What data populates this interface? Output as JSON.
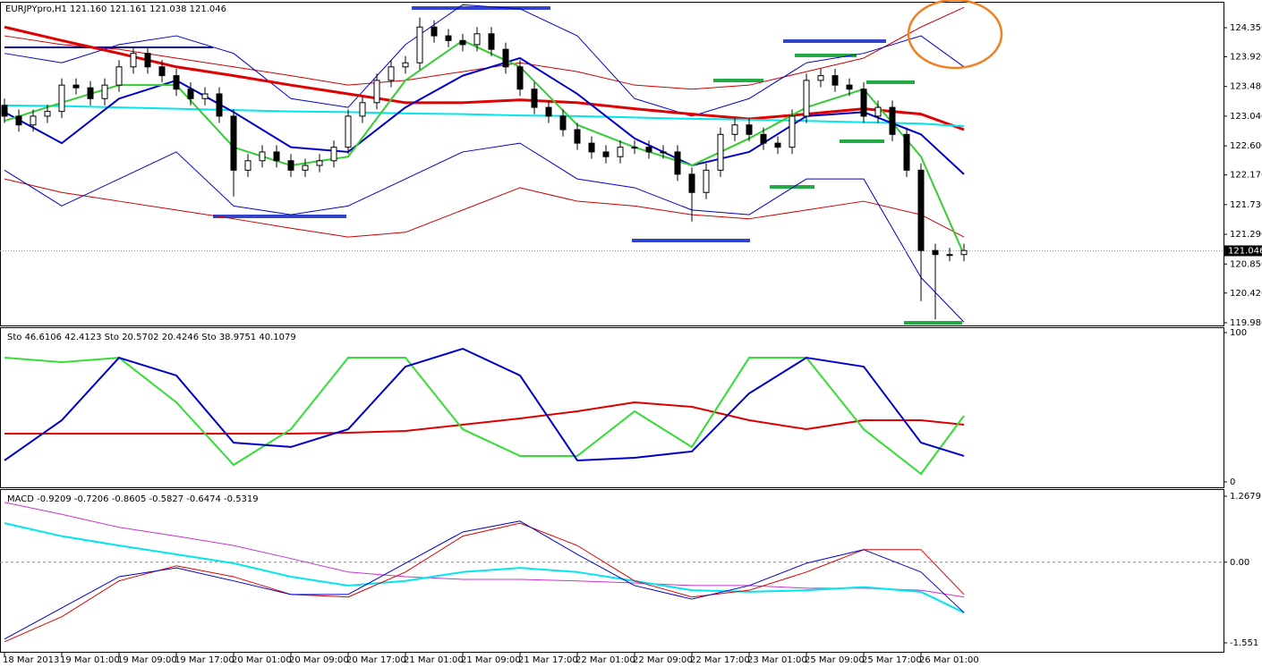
{
  "chart_data": [
    {
      "type": "candlestick",
      "title": "EURJPYpro,H1  121.160 121.161 121.038 121.046",
      "xlim": [
        -0.625,
        170.25
      ],
      "ylim": [
        119.94,
        124.734
      ],
      "yticks": [
        {
          "value": 124.35,
          "label": "124.350"
        },
        {
          "value": 123.92,
          "label": "123.920"
        },
        {
          "value": 123.48,
          "label": "123.480"
        },
        {
          "value": 123.04,
          "label": "123.040"
        },
        {
          "value": 122.6,
          "label": "122.600"
        },
        {
          "value": 122.17,
          "label": "122.170"
        },
        {
          "value": 121.73,
          "label": "121.730"
        },
        {
          "value": 121.29,
          "label": "121.290"
        },
        {
          "value": 120.85,
          "label": "120.850"
        },
        {
          "value": 120.42,
          "label": "120.420"
        },
        {
          "value": 119.98,
          "label": "119.980"
        }
      ],
      "last_price": {
        "value": 121.046,
        "label": "121.046"
      },
      "bull_color": "#ffffff",
      "bear_color": "#000000",
      "x": [
        0,
        2,
        4,
        6,
        8,
        10,
        12,
        14,
        16,
        18,
        20,
        22,
        24,
        26,
        28,
        30,
        32,
        34,
        36,
        38,
        40,
        42,
        44,
        46,
        48,
        50,
        52,
        54,
        56,
        58,
        60,
        62,
        64,
        66,
        68,
        70,
        72,
        74,
        76,
        78,
        80,
        82,
        84,
        86,
        88,
        90,
        92,
        94,
        96,
        98,
        100,
        102,
        104,
        106,
        108,
        110,
        112,
        114,
        116,
        118,
        120,
        122,
        124,
        126,
        128,
        130,
        132,
        134
      ],
      "open": [
        123.2,
        123.04,
        122.91,
        123.04,
        123.11,
        123.5,
        123.46,
        123.3,
        123.5,
        123.77,
        123.97,
        123.77,
        123.64,
        123.44,
        123.3,
        123.37,
        123.04,
        122.24,
        122.38,
        122.51,
        122.38,
        122.24,
        122.31,
        122.38,
        122.58,
        123.04,
        123.24,
        123.57,
        123.77,
        123.83,
        124.36,
        124.23,
        124.16,
        124.1,
        124.26,
        124.03,
        123.77,
        123.44,
        123.17,
        123.04,
        122.84,
        122.64,
        122.51,
        122.44,
        122.58,
        122.58,
        122.51,
        122.51,
        122.18,
        121.91,
        122.24,
        122.77,
        122.91,
        122.77,
        122.64,
        122.58,
        123.04,
        123.57,
        123.64,
        123.5,
        123.44,
        123.04,
        123.17,
        122.77,
        122.24,
        121.05,
        120.99,
        120.99
      ],
      "high": [
        123.3,
        123.14,
        123.14,
        123.21,
        123.6,
        123.6,
        123.56,
        123.6,
        123.87,
        124.07,
        124.07,
        123.87,
        123.74,
        123.54,
        123.47,
        123.47,
        123.14,
        122.48,
        122.61,
        122.61,
        122.48,
        122.41,
        122.48,
        122.68,
        123.14,
        123.34,
        123.67,
        123.87,
        123.93,
        124.5,
        124.46,
        124.33,
        124.26,
        124.36,
        124.36,
        124.13,
        123.87,
        123.54,
        123.27,
        123.14,
        122.94,
        122.74,
        122.61,
        122.68,
        122.68,
        122.68,
        122.61,
        122.61,
        122.28,
        122.34,
        122.87,
        123.01,
        123.01,
        122.87,
        122.74,
        123.14,
        123.67,
        123.74,
        123.74,
        123.6,
        123.54,
        123.27,
        123.27,
        122.87,
        122.34,
        121.15,
        121.09,
        121.15
      ],
      "low": [
        122.94,
        122.81,
        122.81,
        122.94,
        123.01,
        123.36,
        123.2,
        123.2,
        123.4,
        123.67,
        123.67,
        123.54,
        123.34,
        123.2,
        123.2,
        122.94,
        121.85,
        122.14,
        122.28,
        122.28,
        122.14,
        122.14,
        122.21,
        122.28,
        122.48,
        122.94,
        123.14,
        123.47,
        123.67,
        123.73,
        124.13,
        124.06,
        124.0,
        124.0,
        123.93,
        123.67,
        123.34,
        123.07,
        122.94,
        122.74,
        122.54,
        122.41,
        122.34,
        122.34,
        122.48,
        122.41,
        122.41,
        122.08,
        121.48,
        121.81,
        122.14,
        122.67,
        122.67,
        122.54,
        122.48,
        122.48,
        122.94,
        123.47,
        123.4,
        123.34,
        122.94,
        122.94,
        122.67,
        122.14,
        120.3,
        120.03,
        120.89,
        120.89
      ],
      "close": [
        123.04,
        122.91,
        123.04,
        123.11,
        123.5,
        123.46,
        123.3,
        123.5,
        123.77,
        123.97,
        123.77,
        123.64,
        123.44,
        123.3,
        123.37,
        123.04,
        122.24,
        122.38,
        122.51,
        122.38,
        122.24,
        122.31,
        122.38,
        122.58,
        123.04,
        123.24,
        123.57,
        123.77,
        123.83,
        124.36,
        124.23,
        124.16,
        124.1,
        124.26,
        124.03,
        123.77,
        123.44,
        123.17,
        123.04,
        122.84,
        122.64,
        122.51,
        122.44,
        122.58,
        122.58,
        122.51,
        122.51,
        122.18,
        121.91,
        122.24,
        122.77,
        122.91,
        122.77,
        122.64,
        122.58,
        123.04,
        123.57,
        123.64,
        123.5,
        123.44,
        123.04,
        123.17,
        122.77,
        122.24,
        121.05,
        120.99,
        120.99,
        121.05
      ],
      "overlay_x": [
        0,
        8,
        16,
        24,
        32,
        40,
        48,
        56,
        64,
        72,
        80,
        88,
        96,
        104,
        112,
        120,
        128,
        134
      ],
      "overlays": [
        {
          "color": "#cc0000",
          "values": [
            124.23,
            124.1,
            124.03,
            123.9,
            123.77,
            123.64,
            123.5,
            123.57,
            123.7,
            123.83,
            123.7,
            123.5,
            123.44,
            123.5,
            123.7,
            123.9,
            124.36,
            124.65
          ]
        },
        {
          "color": "#cc0000",
          "values": [
            122.11,
            121.91,
            121.78,
            121.65,
            121.52,
            121.38,
            121.25,
            121.32,
            121.65,
            121.98,
            121.78,
            121.71,
            121.58,
            121.52,
            121.65,
            121.78,
            121.58,
            121.25
          ]
        },
        {
          "color": "#0000cc",
          "values": [
            123.97,
            123.83,
            124.1,
            124.23,
            123.97,
            123.3,
            123.17,
            124.1,
            124.69,
            124.63,
            124.23,
            123.3,
            123.04,
            123.3,
            123.83,
            123.97,
            124.23,
            123.77
          ]
        },
        {
          "color": "#0000cc",
          "values": [
            122.24,
            121.71,
            122.11,
            122.51,
            121.71,
            121.58,
            121.71,
            122.11,
            122.51,
            122.64,
            122.11,
            121.98,
            121.65,
            121.58,
            122.11,
            122.11,
            120.65,
            119.99
          ]
        },
        {
          "color": "#e00000",
          "values": [
            124.36,
            124.16,
            123.97,
            123.77,
            123.64,
            123.5,
            123.37,
            123.24,
            123.24,
            123.28,
            123.24,
            123.15,
            123.07,
            123.0,
            123.07,
            123.15,
            123.07,
            122.84
          ]
        },
        {
          "color": "#00e5ee",
          "values": [
            123.2,
            123.19,
            123.17,
            123.15,
            123.13,
            123.11,
            123.1,
            123.08,
            123.07,
            123.05,
            123.04,
            123.02,
            123.0,
            122.99,
            122.97,
            122.95,
            122.93,
            122.89
          ]
        },
        {
          "color": "#0000cc",
          "values": [
            123.1,
            122.64,
            123.3,
            123.57,
            123.1,
            122.58,
            122.51,
            123.17,
            123.64,
            123.9,
            123.37,
            122.71,
            122.31,
            122.51,
            123.04,
            123.1,
            122.77,
            122.18
          ]
        },
        {
          "color": "#33cc33",
          "values": [
            122.97,
            123.24,
            123.5,
            123.5,
            122.58,
            122.31,
            122.44,
            123.57,
            124.16,
            123.77,
            122.91,
            122.58,
            122.31,
            122.71,
            123.17,
            123.44,
            122.44,
            120.99
          ]
        }
      ]
    },
    {
      "type": "line",
      "title": "Sto 46.6106 42.4123  Sto 20.5702 20.4246  Sto 38.9751 40.1079",
      "xlim": [
        -0.625,
        170.25
      ],
      "ylim": [
        -3.59,
        102.99
      ],
      "yticks": [
        100,
        0
      ],
      "x": [
        0,
        8,
        16,
        24,
        32,
        40,
        48,
        56,
        64,
        72,
        80,
        88,
        96,
        104,
        112,
        120,
        128,
        134
      ],
      "series": [
        {
          "color": "#dd0000",
          "values": [
            32.3,
            32.3,
            32.3,
            32.3,
            32.3,
            32.3,
            32.9,
            34.1,
            38.3,
            42.5,
            47.3,
            53.3,
            50.3,
            41.3,
            35.3,
            41.3,
            41.3,
            38.3
          ]
        },
        {
          "color": "#33dd33",
          "values": [
            83.2,
            80.2,
            83.2,
            53.3,
            11.4,
            35.3,
            83.2,
            83.2,
            35.3,
            17.4,
            17.4,
            47.3,
            23.4,
            83.2,
            83.2,
            35.3,
            5.4,
            44.3
          ]
        },
        {
          "color": "#0000cc",
          "values": [
            14.4,
            41.3,
            83.2,
            71.3,
            26.3,
            23.4,
            35.3,
            77.2,
            89.2,
            71.3,
            14.4,
            16.2,
            20.4,
            59.3,
            83.2,
            77.2,
            26.3,
            17.4
          ]
        }
      ]
    },
    {
      "type": "line",
      "title": "MACD -0.9209 -0.7206 -0.8605 -0.5827 -0.6474 -0.5319",
      "xlim": [
        -0.625,
        170.25
      ],
      "ylim": [
        -1.723,
        1.388
      ],
      "yticks": [
        1.2679,
        {
          "value": 0,
          "label": "0.00"
        },
        -1.551
      ],
      "xticks": [
        {
          "value": 0,
          "label": "18 Mar 2013"
        },
        {
          "value": 8,
          "label": "19 Mar 01:00"
        },
        {
          "value": 16,
          "label": "19 Mar 09:00"
        },
        {
          "value": 24,
          "label": "19 Mar 17:00"
        },
        {
          "value": 32,
          "label": "20 Mar 01:00"
        },
        {
          "value": 40,
          "label": "20 Mar 09:00"
        },
        {
          "value": 48,
          "label": "20 Mar 17:00"
        },
        {
          "value": 56,
          "label": "21 Mar 01:00"
        },
        {
          "value": 64,
          "label": "21 Mar 09:00"
        },
        {
          "value": 72,
          "label": "21 Mar 17:00"
        },
        {
          "value": 80,
          "label": "22 Mar 01:00"
        },
        {
          "value": 88,
          "label": "22 Mar 09:00"
        },
        {
          "value": 96,
          "label": "22 Mar 17:00"
        },
        {
          "value": 104,
          "label": "23 Mar 01:00"
        },
        {
          "value": 112,
          "label": "25 Mar 09:00"
        },
        {
          "value": 120,
          "label": "25 Mar 17:00"
        },
        {
          "value": 128,
          "label": "26 Mar 01:00"
        }
      ],
      "x": [
        0,
        8,
        16,
        24,
        32,
        40,
        48,
        56,
        64,
        72,
        80,
        88,
        96,
        104,
        112,
        120,
        128,
        134
      ],
      "series": [
        {
          "color": "#cc33cc",
          "values": [
            1.15,
            0.92,
            0.67,
            0.5,
            0.32,
            0.07,
            -0.19,
            -0.28,
            -0.33,
            -0.33,
            -0.36,
            -0.4,
            -0.45,
            -0.45,
            -0.5,
            -0.5,
            -0.54,
            -0.67
          ]
        },
        {
          "color": "#00e5ee",
          "values": [
            0.75,
            0.5,
            0.32,
            0.15,
            -0.02,
            -0.28,
            -0.45,
            -0.36,
            -0.19,
            -0.11,
            -0.19,
            -0.36,
            -0.54,
            -0.57,
            -0.54,
            -0.48,
            -0.57,
            -0.97
          ]
        },
        {
          "color": "#dd0000",
          "values": [
            -1.53,
            -1.05,
            -0.36,
            -0.07,
            -0.28,
            -0.62,
            -0.67,
            -0.19,
            0.5,
            0.75,
            0.32,
            -0.36,
            -0.67,
            -0.54,
            -0.19,
            0.24,
            0.24,
            -0.62
          ]
        },
        {
          "color": "#0000cc",
          "values": [
            -1.48,
            -0.88,
            -0.28,
            -0.11,
            -0.36,
            -0.62,
            -0.62,
            -0.02,
            0.58,
            0.79,
            0.15,
            -0.45,
            -0.71,
            -0.45,
            -0.02,
            0.24,
            -0.19,
            -0.97
          ]
        }
      ]
    }
  ]
}
